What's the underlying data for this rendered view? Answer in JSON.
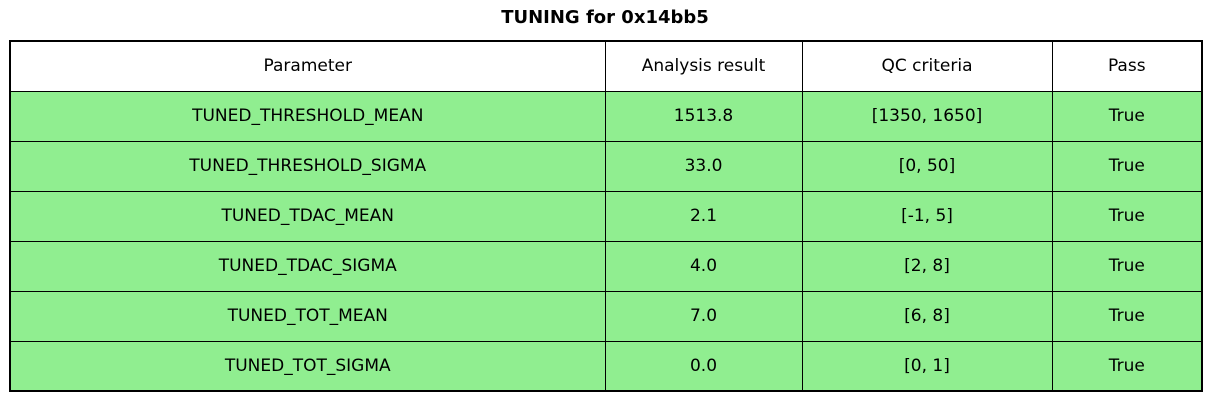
{
  "figure": {
    "title": "TUNING for 0x14bb5"
  },
  "colors": {
    "row_pass_bg": "#90EE90",
    "header_bg": "#FFFFFF",
    "border": "#000000",
    "text": "#000000"
  },
  "table": {
    "columns": [
      "Parameter",
      "Analysis result",
      "QC criteria",
      "Pass"
    ],
    "rows": [
      {
        "parameter": "TUNED_THRESHOLD_MEAN",
        "analysis_result": "1513.8",
        "qc_criteria": "[1350, 1650]",
        "pass": "True"
      },
      {
        "parameter": "TUNED_THRESHOLD_SIGMA",
        "analysis_result": "33.0",
        "qc_criteria": "[0, 50]",
        "pass": "True"
      },
      {
        "parameter": "TUNED_TDAC_MEAN",
        "analysis_result": "2.1",
        "qc_criteria": "[-1, 5]",
        "pass": "True"
      },
      {
        "parameter": "TUNED_TDAC_SIGMA",
        "analysis_result": "4.0",
        "qc_criteria": "[2, 8]",
        "pass": "True"
      },
      {
        "parameter": "TUNED_TOT_MEAN",
        "analysis_result": "7.0",
        "qc_criteria": "[6, 8]",
        "pass": "True"
      },
      {
        "parameter": "TUNED_TOT_SIGMA",
        "analysis_result": "0.0",
        "qc_criteria": "[0, 1]",
        "pass": "True"
      }
    ]
  },
  "chart_data": {
    "type": "table",
    "title": "TUNING for 0x14bb5",
    "columns": [
      "Parameter",
      "Analysis result",
      "QC criteria",
      "Pass"
    ],
    "rows": [
      [
        "TUNED_THRESHOLD_MEAN",
        "1513.8",
        "[1350, 1650]",
        "True"
      ],
      [
        "TUNED_THRESHOLD_SIGMA",
        "33.0",
        "[0, 50]",
        "True"
      ],
      [
        "TUNED_TDAC_MEAN",
        "2.1",
        "[-1, 5]",
        "True"
      ],
      [
        "TUNED_TDAC_SIGMA",
        "4.0",
        "[2, 8]",
        "True"
      ],
      [
        "TUNED_TOT_MEAN",
        "7.0",
        "[6, 8]",
        "True"
      ],
      [
        "TUNED_TOT_SIGMA",
        "0.0",
        "[0, 1]",
        "True"
      ]
    ],
    "layout_hints": {
      "header_background": "#FFFFFF",
      "row_background": "#90EE90",
      "all_rows_pass": true
    }
  }
}
